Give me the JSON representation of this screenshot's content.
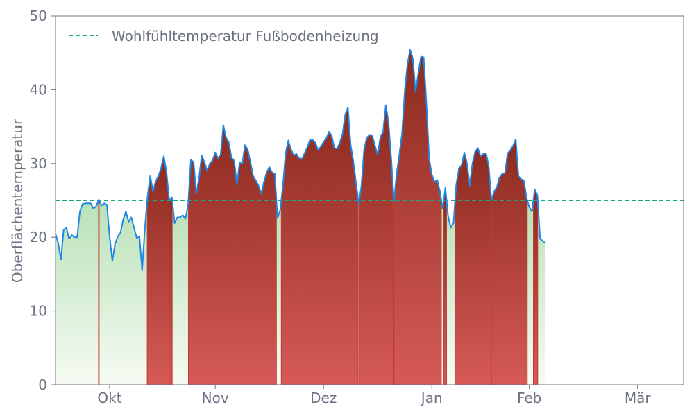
{
  "chart_data": {
    "type": "area",
    "title": "",
    "xlabel": "",
    "ylabel": "Oberflächentemperatur",
    "ylim": [
      0,
      50
    ],
    "yticks": [
      0,
      10,
      20,
      30,
      40,
      50
    ],
    "xlim": [
      0,
      232
    ],
    "x_ticks": [
      {
        "day": 20,
        "label": "Okt"
      },
      {
        "day": 59,
        "label": "Nov"
      },
      {
        "day": 99,
        "label": "Dez"
      },
      {
        "day": 139,
        "label": "Jan"
      },
      {
        "day": 175,
        "label": "Feb"
      },
      {
        "day": 215,
        "label": "Mär"
      }
    ],
    "threshold": {
      "value": 25,
      "label": "Wohlfühltemperatur Fußbodenheizung",
      "color": "#1aa97a"
    },
    "legend_position": "top-left",
    "colors": {
      "line": "#1f88e5",
      "above_fill_top": "#8c2a1e",
      "above_fill_bottom": "#d65a57",
      "below_fill_top": "#86cc86",
      "below_fill_bottom": "#f6fbf3",
      "axis": "#6b7180"
    },
    "series": [
      {
        "values": [
          20.5,
          19.2,
          17.0,
          21.0,
          21.3,
          19.8,
          20.3,
          20.0,
          20.0,
          23.5,
          24.5,
          24.6,
          24.6,
          24.6,
          23.9,
          24.2,
          25.1,
          24.3,
          24.6,
          24.4,
          20.0,
          16.8,
          19.1,
          20.1,
          20.6,
          22.4,
          23.5,
          22.1,
          22.7,
          21.3,
          19.9,
          20.1,
          15.5,
          21.2,
          25.6,
          28.3,
          26.2,
          27.6,
          28.3,
          29.4,
          31.0,
          28.8,
          25.0,
          25.4,
          21.9,
          22.7,
          22.7,
          23.0,
          22.5,
          24.5,
          30.5,
          30.2,
          25.9,
          28.0,
          31.1,
          30.2,
          29.0,
          30.0,
          30.4,
          31.5,
          30.7,
          31.2,
          35.2,
          33.5,
          32.9,
          30.8,
          30.4,
          27.1,
          30.1,
          30.0,
          32.5,
          31.9,
          30.2,
          28.3,
          27.7,
          27.0,
          25.9,
          27.5,
          28.8,
          29.5,
          28.8,
          28.6,
          22.6,
          23.7,
          27.0,
          31.4,
          33.1,
          31.9,
          31.1,
          31.3,
          30.7,
          30.6,
          31.4,
          32.2,
          33.2,
          33.2,
          32.8,
          31.8,
          32.3,
          32.9,
          33.4,
          34.3,
          33.8,
          32.1,
          32.0,
          32.8,
          34.0,
          36.6,
          37.6,
          32.6,
          30.3,
          27.4,
          24.5,
          27.0,
          32.0,
          33.5,
          33.9,
          33.8,
          32.4,
          31.2,
          33.6,
          34.3,
          37.9,
          35.6,
          30.7,
          24.8,
          28.6,
          31.2,
          34.1,
          39.8,
          43.5,
          45.4,
          44.2,
          39.7,
          42.2,
          44.5,
          44.4,
          38.2,
          30.7,
          28.5,
          27.5,
          27.8,
          26.2,
          23.9,
          26.7,
          22.9,
          21.3,
          21.9,
          27.1,
          29.3,
          29.8,
          31.5,
          30.0,
          27.0,
          30.0,
          31.6,
          32.1,
          31.0,
          31.3,
          31.4,
          29.7,
          25.0,
          26.2,
          26.8,
          28.1,
          28.6,
          28.7,
          31.4,
          31.8,
          32.4,
          33.3,
          28.3,
          27.9,
          27.7,
          25.3,
          24.1,
          23.5,
          26.5,
          25.7,
          19.8,
          19.5,
          19.2
        ]
      }
    ],
    "x_start_day": 0,
    "x_step_days": 1
  }
}
